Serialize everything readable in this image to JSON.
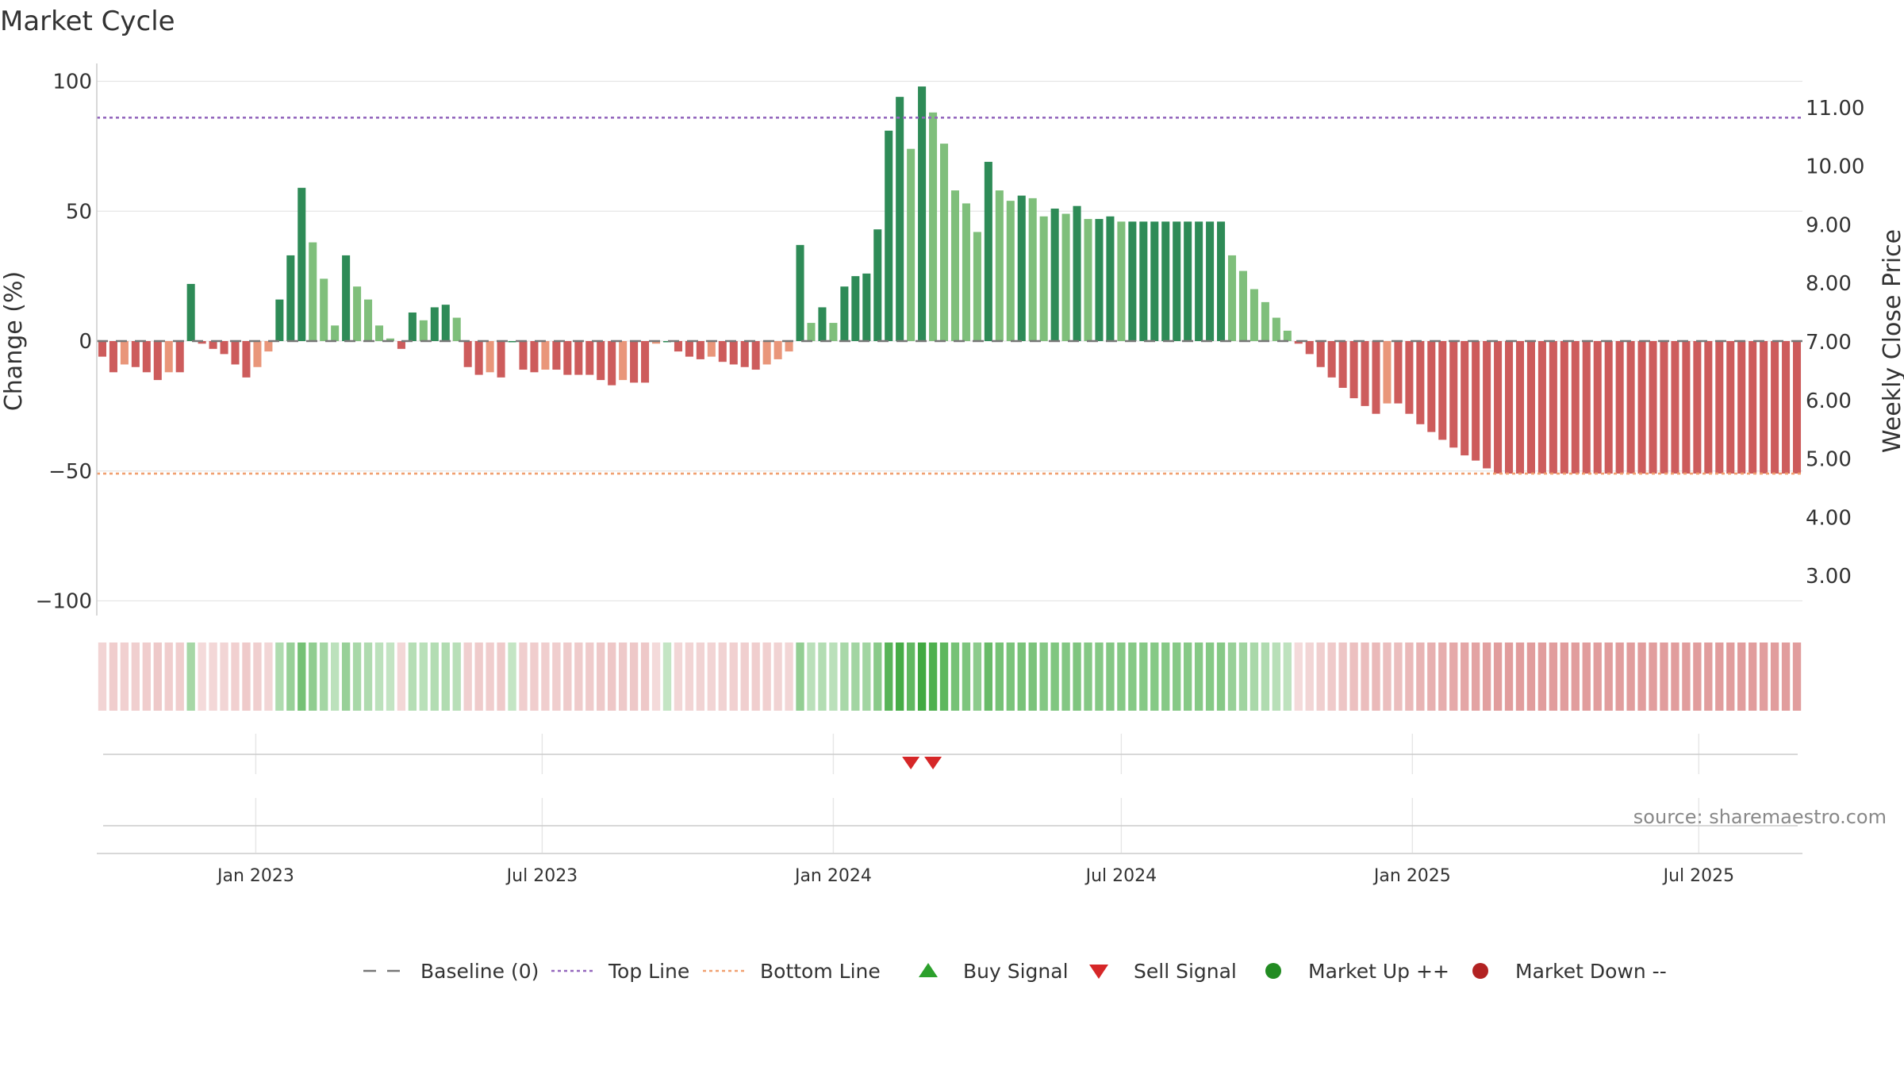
{
  "title": "Market Cycle",
  "source": "source: sharemaestro.com",
  "chart_data": {
    "type": "bar",
    "title": "Market Cycle",
    "xlabel": "",
    "ylabel": "Change (%)",
    "y2label": "Weekly Close Price",
    "ylim": [
      -100,
      100
    ],
    "y2lim": [
      2.4,
      11.8
    ],
    "yticks": [
      {
        "value": 100,
        "label": "100"
      },
      {
        "value": 50,
        "label": "50"
      },
      {
        "value": 0,
        "label": "0"
      },
      {
        "value": -50,
        "label": "−50"
      },
      {
        "value": -100,
        "label": "−100"
      }
    ],
    "y2ticks": [
      {
        "value": 11,
        "label": "11.00"
      },
      {
        "value": 10,
        "label": "10.00"
      },
      {
        "value": 9,
        "label": "9.00"
      },
      {
        "value": 8,
        "label": "8.00"
      },
      {
        "value": 7,
        "label": "7.00"
      },
      {
        "value": 6,
        "label": "6.00"
      },
      {
        "value": 5,
        "label": "5.00"
      },
      {
        "value": 4,
        "label": "4.00"
      },
      {
        "value": 3,
        "label": "3.00"
      }
    ],
    "x_start": "2022-09-26",
    "x_interval_days": 7,
    "x_end": "2025-09-15",
    "xticks": [
      {
        "date": "2023-01-01",
        "label": "Jan 2023"
      },
      {
        "date": "2023-07-01",
        "label": "Jul 2023"
      },
      {
        "date": "2024-01-01",
        "label": "Jan 2024"
      },
      {
        "date": "2024-07-01",
        "label": "Jul 2024"
      },
      {
        "date": "2025-01-01",
        "label": "Jan 2025"
      },
      {
        "date": "2025-07-01",
        "label": "Jul 2025"
      }
    ],
    "values": [
      -6,
      -12,
      -9,
      -10,
      -12,
      -15,
      -12,
      -12,
      22,
      -1,
      -3,
      -5,
      -9,
      -14,
      -10,
      -4,
      16,
      33,
      59,
      38,
      24,
      6,
      33,
      21,
      16,
      6,
      1,
      -3,
      11,
      8,
      13,
      14,
      9,
      -10,
      -13,
      -12,
      -14,
      0,
      -11,
      -12,
      -11,
      -11,
      -13,
      -13,
      -13,
      -15,
      -17,
      -15,
      -16,
      -16,
      -1,
      0,
      -4,
      -6,
      -7,
      -6,
      -8,
      -9,
      -10,
      -11,
      -9,
      -7,
      -4,
      37,
      7,
      13,
      7,
      21,
      25,
      26,
      43,
      81,
      94,
      74,
      98,
      88,
      76,
      58,
      53,
      42,
      69,
      58,
      54,
      56,
      55,
      48,
      51,
      49,
      52,
      47,
      47,
      48,
      46,
      46,
      46,
      46,
      46,
      46,
      46,
      46,
      46,
      46,
      33,
      27,
      20,
      15,
      9,
      4,
      -1,
      -5,
      -10,
      -14,
      -18,
      -22,
      -25,
      -28,
      -24,
      -24,
      -28,
      -32,
      -35,
      -38,
      -41,
      -44,
      -46,
      -49,
      -51,
      -51,
      -51,
      -51,
      -51,
      -51,
      -51,
      -51,
      -51,
      -51,
      -51,
      -51,
      -51,
      -51,
      -51,
      -51,
      -51,
      -51,
      -51,
      -51,
      -51,
      -51,
      -51,
      -51,
      -51,
      -51,
      -51,
      -51
    ],
    "reference_lines": [
      {
        "name": "Baseline (0)",
        "value": 0,
        "style": "dashed",
        "color": "#777777"
      },
      {
        "name": "Top Line",
        "value": 86,
        "style": "dotted",
        "color": "#9467bd"
      },
      {
        "name": "Bottom Line",
        "value": -51,
        "style": "dotted",
        "color": "#f0a070"
      }
    ],
    "bar_colors": {
      "up_strong": "#2e8b57",
      "up_weak": "#7fbf7b",
      "down_strong": "#cd5c5c",
      "down_weak": "#e9967a"
    },
    "sell_signals": [
      "2024-02-19",
      "2024-03-04"
    ],
    "buy_signals": [],
    "heat_colors": {
      "up": "#2ca02c",
      "down": "#cd5c5c"
    },
    "legend_position": "bottom",
    "legend": [
      {
        "label": "Baseline (0)",
        "symbol": "dashed",
        "color": "#777777"
      },
      {
        "label": "Top Line",
        "symbol": "dotted",
        "color": "#9467bd"
      },
      {
        "label": "Bottom Line",
        "symbol": "dotted",
        "color": "#f0a070"
      },
      {
        "label": "Buy Signal",
        "symbol": "triangle-up",
        "color": "#2ca02c"
      },
      {
        "label": "Sell Signal",
        "symbol": "triangle-down",
        "color": "#d62728"
      },
      {
        "label": "Market Up ++",
        "symbol": "circle",
        "color": "#228b22"
      },
      {
        "label": "Market Down --",
        "symbol": "circle",
        "color": "#b22222"
      }
    ]
  }
}
